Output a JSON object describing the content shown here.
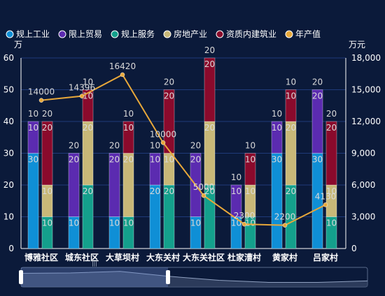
{
  "colors": {
    "background": "#0b1a3a",
    "grid": "#1f3a7a",
    "series": [
      "#0f8fd6",
      "#5b2bb0",
      "#14a08c",
      "#c8b878",
      "#8a0a2c",
      "#e8a83a"
    ]
  },
  "chart_data": {
    "type": "bar",
    "categories": [
      "博雅社区",
      "城东社区",
      "大草坝村",
      "大东关村",
      "大东关社区",
      "杜家漕村",
      "黄家村",
      "吕家村"
    ],
    "y_left": {
      "label": "万",
      "ticks": [
        0,
        10,
        20,
        30,
        40,
        50,
        60
      ],
      "range": [
        0,
        60
      ]
    },
    "y_right": {
      "label": "万元",
      "ticks": [
        0,
        3000,
        6000,
        9000,
        12000,
        15000,
        18000
      ],
      "range": [
        0,
        18000
      ]
    },
    "stacks": [
      {
        "series": [
          {
            "name": "规上工业",
            "values": [
              30,
              10,
              10,
              20,
              10,
              10,
              30,
              30
            ]
          },
          {
            "name": "限上贸易",
            "values": [
              10,
              20,
              20,
              10,
              20,
              10,
              10,
              20
            ]
          }
        ]
      },
      {
        "series": [
          {
            "name": "规上服务",
            "values": [
              10,
              20,
              10,
              20,
              20,
              10,
              20,
              10
            ]
          },
          {
            "name": "房地产业",
            "values": [
              10,
              20,
              20,
              10,
              20,
              10,
              20,
              10
            ]
          },
          {
            "name": "资质内建筑业",
            "values": [
              20,
              10,
              10,
              20,
              20,
              10,
              10,
              20
            ]
          }
        ]
      }
    ],
    "line": {
      "name": "年产值",
      "values": [
        14000,
        14396,
        16420,
        10000,
        5000,
        2300,
        2200,
        4130
      ]
    },
    "legend_position": "top-left",
    "grid": true
  },
  "slider": {
    "handle_label": "|||"
  }
}
